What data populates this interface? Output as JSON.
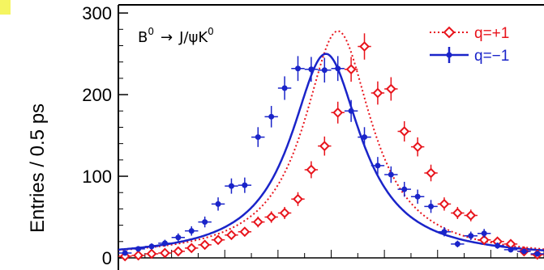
{
  "accent_color": "#f5f560",
  "chart_data": {
    "type": "scatter",
    "title": "",
    "ylabel": "Entries / 0.5 ps",
    "xlabel": "",
    "ylim": [
      0,
      310
    ],
    "xlim": [
      -8,
      8
    ],
    "yticks": [
      0,
      100,
      200,
      300
    ],
    "ytick_labels": [
      "0",
      "100",
      "200",
      "300"
    ],
    "annotation": {
      "B": "B",
      "sup0": "0",
      "arrow": "→",
      "jpsik": "J/ψK",
      "sup0b": "0"
    },
    "legend_position": "top-right",
    "series": [
      {
        "name": "q=+1",
        "color": "#e8141c",
        "marker": "open-diamond",
        "line_style": "dotted",
        "x": [
          -7.75,
          -7.25,
          -6.75,
          -6.25,
          -5.75,
          -5.25,
          -4.75,
          -4.25,
          -3.75,
          -3.25,
          -2.75,
          -2.25,
          -1.75,
          -1.25,
          -0.75,
          -0.25,
          0.25,
          0.75,
          1.25,
          1.75,
          2.25,
          2.75,
          3.25,
          3.75,
          4.25,
          4.75,
          5.25,
          5.75,
          6.25,
          6.75,
          7.25,
          7.75
        ],
        "values": [
          2,
          3,
          5,
          6,
          8,
          12,
          16,
          22,
          28,
          32,
          44,
          50,
          55,
          72,
          108,
          137,
          178,
          231,
          259,
          202,
          207,
          155,
          136,
          104,
          66,
          55,
          52,
          22,
          20,
          17,
          8,
          4
        ],
        "fit": {
          "peak": 278,
          "mu": 0.25,
          "gamma": 1.55
        }
      },
      {
        "name": "q=−1",
        "color": "#1a24c9",
        "marker": "filled-cross",
        "line_style": "solid",
        "x": [
          -7.75,
          -7.25,
          -6.75,
          -6.25,
          -5.75,
          -5.25,
          -4.75,
          -4.25,
          -3.75,
          -3.25,
          -2.75,
          -2.25,
          -1.75,
          -1.25,
          -0.75,
          -0.25,
          0.25,
          0.75,
          1.25,
          1.75,
          2.25,
          2.75,
          3.25,
          3.75,
          4.25,
          4.75,
          5.25,
          5.75,
          6.25,
          6.75,
          7.25,
          7.75
        ],
        "values": [
          6,
          11,
          14,
          18,
          25,
          33,
          44,
          66,
          88,
          89,
          148,
          173,
          208,
          232,
          231,
          230,
          232,
          180,
          148,
          113,
          102,
          84,
          75,
          63,
          32,
          17,
          27,
          30,
          15,
          10,
          8,
          5
        ],
        "fit": {
          "peak": 250,
          "mu": -0.2,
          "gamma": 1.6
        }
      }
    ]
  }
}
